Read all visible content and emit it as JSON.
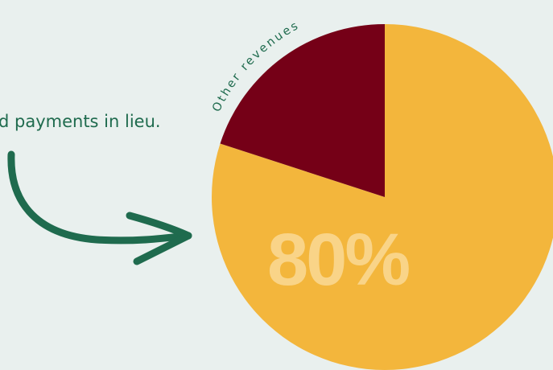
{
  "caption_text": "d payments in lieu.",
  "colors": {
    "background": "#e9f0ee",
    "main_slice": "#f3b63c",
    "other_slice": "#750017",
    "text_green": "#1f6b4e",
    "arrow_green": "#1f6b4e",
    "percent_label": "#f9d488"
  },
  "chart_data": {
    "type": "pie",
    "slices": [
      {
        "label": "",
        "value": 80,
        "color": "#f3b63c"
      },
      {
        "label": "Other revenues",
        "value": 20,
        "color": "#750017"
      }
    ],
    "data_labels": [
      "80%",
      "Other revenues"
    ]
  },
  "labels": {
    "big_percent": "80%",
    "other_slice_label": "Other revenues"
  },
  "icons": {
    "arrow": "curved-arrow-icon"
  }
}
